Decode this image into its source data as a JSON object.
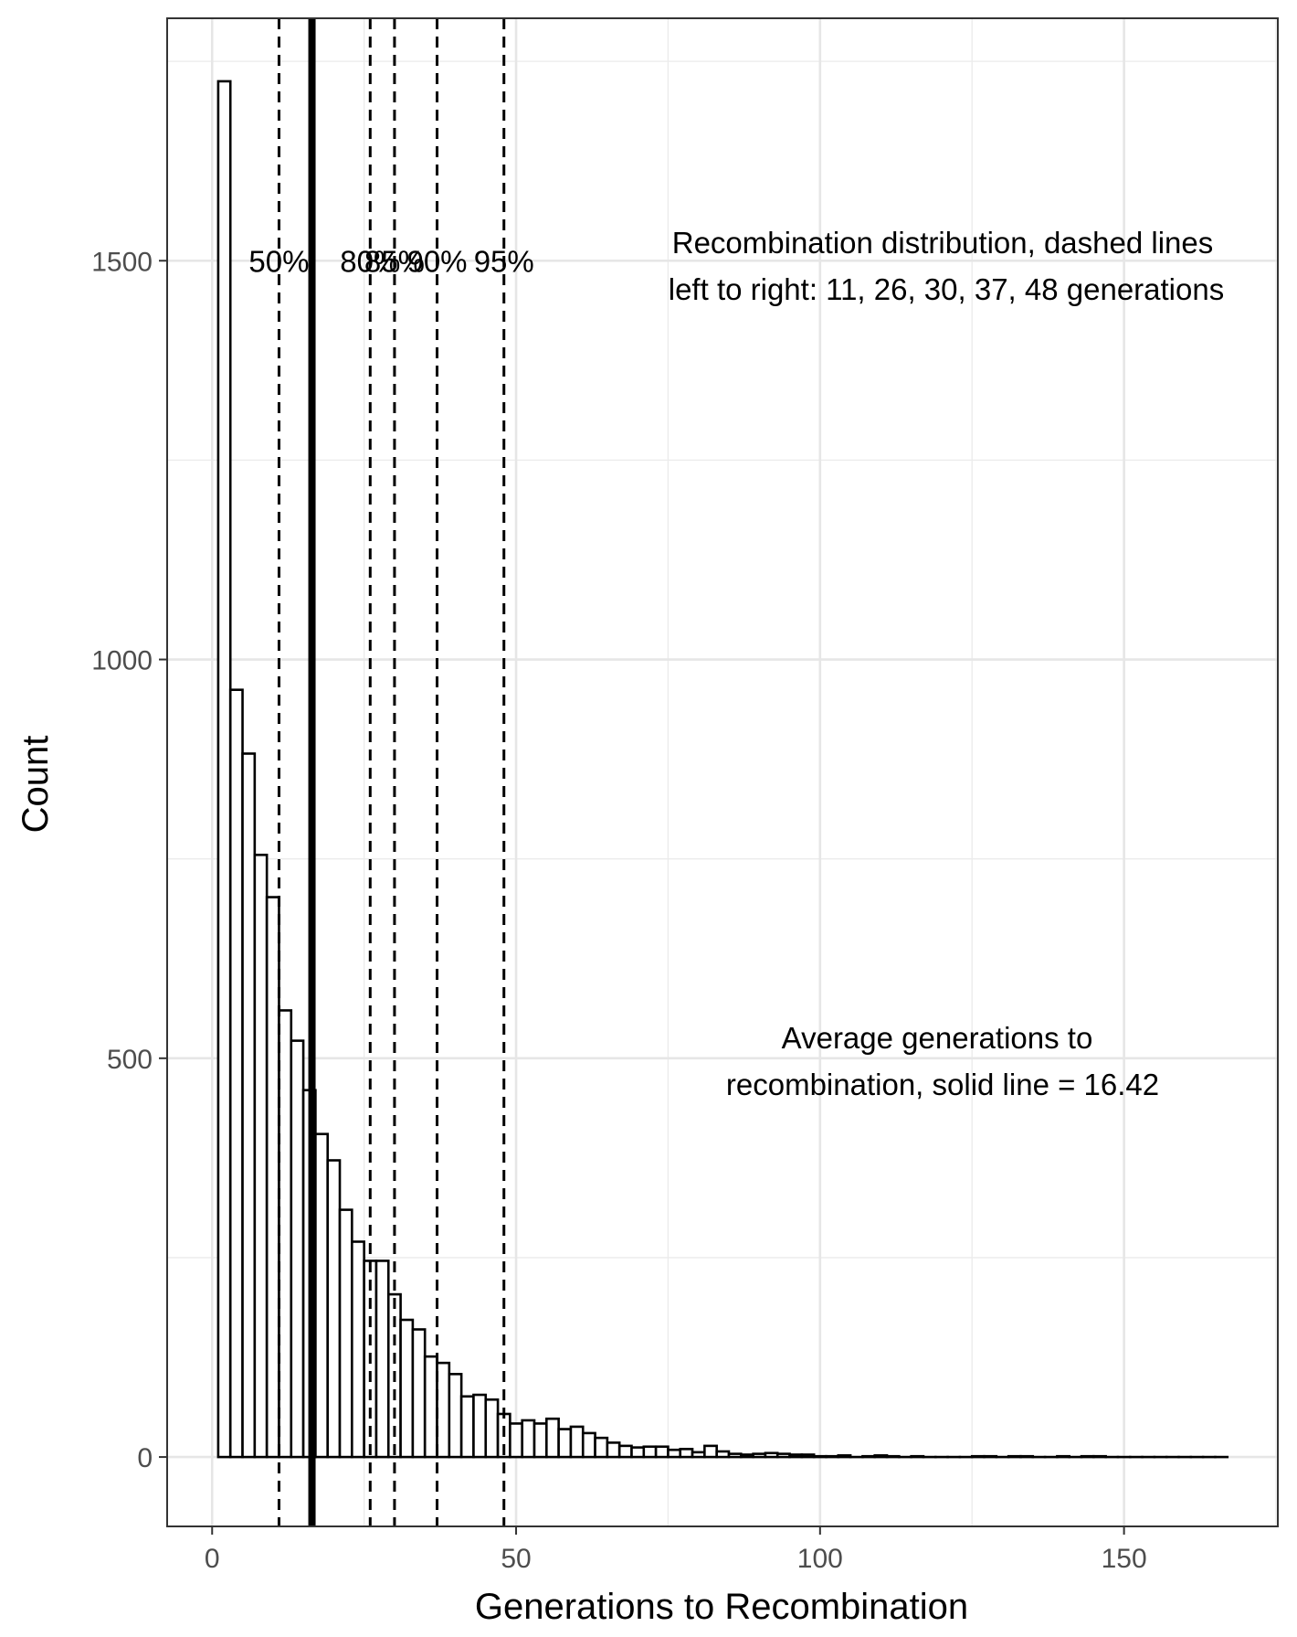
{
  "chart_data": {
    "type": "histogram",
    "xlabel": "Generations to Recombination",
    "ylabel": "Count",
    "xlim": [
      -7.4,
      175.3
    ],
    "ylim": [
      -87,
      1804
    ],
    "x_ticks": [
      0,
      50,
      100,
      150
    ],
    "y_ticks": [
      0,
      500,
      1000,
      1500
    ],
    "x_tick_labels": [
      "0",
      "50",
      "100",
      "150"
    ],
    "y_tick_labels": [
      "0",
      "500",
      "1000",
      "1500"
    ],
    "grid": true,
    "bin_width": 2,
    "bins": [
      {
        "x": 2,
        "count": 1725
      },
      {
        "x": 4,
        "count": 962
      },
      {
        "x": 6,
        "count": 882
      },
      {
        "x": 8,
        "count": 755
      },
      {
        "x": 10,
        "count": 702
      },
      {
        "x": 12,
        "count": 560
      },
      {
        "x": 14,
        "count": 522
      },
      {
        "x": 16,
        "count": 460
      },
      {
        "x": 18,
        "count": 405
      },
      {
        "x": 20,
        "count": 372
      },
      {
        "x": 22,
        "count": 310
      },
      {
        "x": 24,
        "count": 270
      },
      {
        "x": 26,
        "count": 246
      },
      {
        "x": 28,
        "count": 246
      },
      {
        "x": 30,
        "count": 204
      },
      {
        "x": 32,
        "count": 172
      },
      {
        "x": 34,
        "count": 160
      },
      {
        "x": 36,
        "count": 126
      },
      {
        "x": 38,
        "count": 118
      },
      {
        "x": 40,
        "count": 104
      },
      {
        "x": 42,
        "count": 76
      },
      {
        "x": 44,
        "count": 78
      },
      {
        "x": 46,
        "count": 72
      },
      {
        "x": 48,
        "count": 54
      },
      {
        "x": 50,
        "count": 42
      },
      {
        "x": 52,
        "count": 46
      },
      {
        "x": 54,
        "count": 42
      },
      {
        "x": 56,
        "count": 48
      },
      {
        "x": 58,
        "count": 35
      },
      {
        "x": 60,
        "count": 38
      },
      {
        "x": 62,
        "count": 30
      },
      {
        "x": 64,
        "count": 24
      },
      {
        "x": 66,
        "count": 18
      },
      {
        "x": 68,
        "count": 14
      },
      {
        "x": 70,
        "count": 12
      },
      {
        "x": 72,
        "count": 13
      },
      {
        "x": 74,
        "count": 13
      },
      {
        "x": 76,
        "count": 9
      },
      {
        "x": 78,
        "count": 10
      },
      {
        "x": 80,
        "count": 6
      },
      {
        "x": 82,
        "count": 14
      },
      {
        "x": 84,
        "count": 7
      },
      {
        "x": 86,
        "count": 4
      },
      {
        "x": 88,
        "count": 3
      },
      {
        "x": 90,
        "count": 4
      },
      {
        "x": 92,
        "count": 5
      },
      {
        "x": 94,
        "count": 4
      },
      {
        "x": 96,
        "count": 3
      },
      {
        "x": 98,
        "count": 3
      },
      {
        "x": 100,
        "count": 1
      },
      {
        "x": 102,
        "count": 1
      },
      {
        "x": 104,
        "count": 2
      },
      {
        "x": 106,
        "count": 0
      },
      {
        "x": 108,
        "count": 1
      },
      {
        "x": 110,
        "count": 2
      },
      {
        "x": 112,
        "count": 1
      },
      {
        "x": 114,
        "count": 0
      },
      {
        "x": 116,
        "count": 1
      },
      {
        "x": 118,
        "count": 0
      },
      {
        "x": 120,
        "count": 0
      },
      {
        "x": 122,
        "count": 0
      },
      {
        "x": 124,
        "count": 0
      },
      {
        "x": 126,
        "count": 1
      },
      {
        "x": 128,
        "count": 1
      },
      {
        "x": 130,
        "count": 0
      },
      {
        "x": 132,
        "count": 1
      },
      {
        "x": 134,
        "count": 1
      },
      {
        "x": 136,
        "count": 0
      },
      {
        "x": 138,
        "count": 0
      },
      {
        "x": 140,
        "count": 1
      },
      {
        "x": 142,
        "count": 0
      },
      {
        "x": 144,
        "count": 1
      },
      {
        "x": 146,
        "count": 1
      },
      {
        "x": 148,
        "count": 0
      },
      {
        "x": 150,
        "count": 0
      },
      {
        "x": 152,
        "count": 0
      },
      {
        "x": 154,
        "count": 0
      },
      {
        "x": 156,
        "count": 0
      },
      {
        "x": 158,
        "count": 0
      },
      {
        "x": 160,
        "count": 0
      },
      {
        "x": 162,
        "count": 0
      },
      {
        "x": 164,
        "count": 0
      },
      {
        "x": 166,
        "count": 0
      }
    ],
    "percentile_lines": [
      {
        "label": "50%",
        "x": 11
      },
      {
        "label": "80%",
        "x": 26
      },
      {
        "label": "85%",
        "x": 30
      },
      {
        "label": "90%",
        "x": 37
      },
      {
        "label": "95%",
        "x": 48
      }
    ],
    "percentile_label_y": 1500,
    "mean_line": {
      "x": 16.42
    },
    "annotations": {
      "percentile_note": [
        "Recombination distribution, dashed lines",
        "left to right: 11, 26, 30, 37, 48 generations"
      ],
      "mean_note": [
        "Average generations to",
        "recombination, solid line  = 16.42"
      ]
    }
  }
}
